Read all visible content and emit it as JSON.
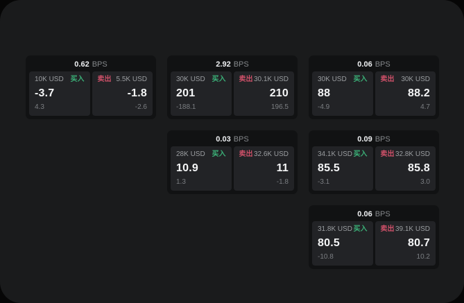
{
  "labels": {
    "bps_unit": "BPS",
    "buy": "买入",
    "sell": "卖出"
  },
  "colors": {
    "buy_accent": "#3bb178",
    "sell_accent": "#cd5068",
    "surface": "#1a1b1c",
    "card": "#111213",
    "panel": "#222326"
  },
  "cards": [
    {
      "bps": "0.62",
      "buy": {
        "amount": "10K USD",
        "price": "-3.7",
        "delta": "4.3"
      },
      "sell": {
        "amount": "5.5K USD",
        "price": "-1.8",
        "delta": "-2.6"
      }
    },
    {
      "bps": "2.92",
      "buy": {
        "amount": "30K USD",
        "price": "201",
        "delta": "-188.1"
      },
      "sell": {
        "amount": "30.1K USD",
        "price": "210",
        "delta": "196.5"
      }
    },
    {
      "bps": "0.06",
      "buy": {
        "amount": "30K USD",
        "price": "88",
        "delta": "-4.9"
      },
      "sell": {
        "amount": "30K USD",
        "price": "88.2",
        "delta": "4.7"
      }
    },
    {
      "bps": "0.03",
      "buy": {
        "amount": "28K USD",
        "price": "10.9",
        "delta": "1.3"
      },
      "sell": {
        "amount": "32.6K USD",
        "price": "11",
        "delta": "-1.8"
      }
    },
    {
      "bps": "0.09",
      "buy": {
        "amount": "34.1K USD",
        "price": "85.5",
        "delta": "-3.1"
      },
      "sell": {
        "amount": "32.8K USD",
        "price": "85.8",
        "delta": "3.0"
      }
    },
    {
      "bps": "0.06",
      "buy": {
        "amount": "31.8K USD",
        "price": "80.5",
        "delta": "-10.8"
      },
      "sell": {
        "amount": "39.1K USD",
        "price": "80.7",
        "delta": "10.2"
      }
    }
  ]
}
